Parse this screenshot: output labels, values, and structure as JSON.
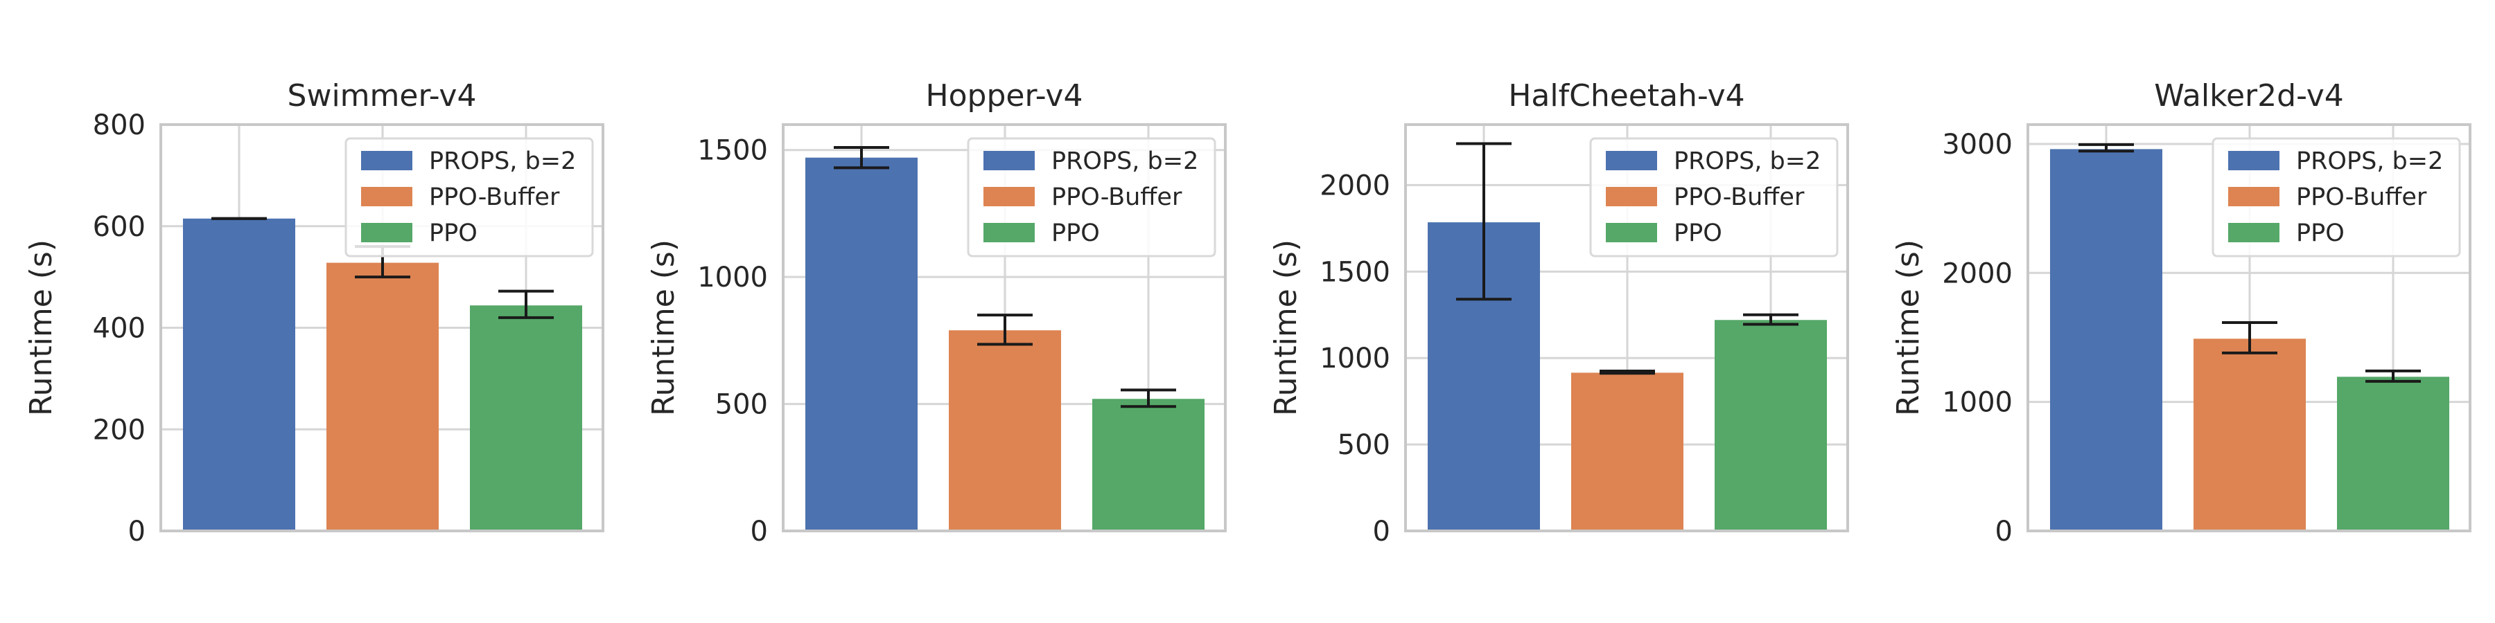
{
  "figure": {
    "ylabel": "Runtime (s)"
  },
  "legend": {
    "labels": [
      "PROPS, b=2",
      "PPO-Buffer",
      "PPO"
    ],
    "colors": [
      "#4c72b0",
      "#dd8452",
      "#55a868"
    ]
  },
  "chart_data": [
    {
      "type": "bar",
      "title": "Swimmer-v4",
      "categories": [
        "PROPS, b=2",
        "PPO-Buffer",
        "PPO"
      ],
      "values": [
        615,
        528,
        444
      ],
      "errors": [
        [
          615,
          615
        ],
        [
          500,
          560
        ],
        [
          420,
          472
        ]
      ],
      "ylim": [
        0,
        800
      ],
      "yticks": [
        0,
        200,
        400,
        600,
        800
      ],
      "xlabel": "",
      "ylabel": "Runtime (s)",
      "grid": true,
      "legend_position": "top-right"
    },
    {
      "type": "bar",
      "title": "Hopper-v4",
      "categories": [
        "PROPS, b=2",
        "PPO-Buffer",
        "PPO"
      ],
      "values": [
        1470,
        790,
        520
      ],
      "errors": [
        [
          1430,
          1510
        ],
        [
          735,
          850
        ],
        [
          490,
          555
        ]
      ],
      "ylim": [
        0,
        1600
      ],
      "yticks": [
        0,
        500,
        1000,
        1500
      ],
      "xlabel": "",
      "ylabel": "Runtime (s)",
      "grid": true,
      "legend_position": "top-right"
    },
    {
      "type": "bar",
      "title": "HalfCheetah-v4",
      "categories": [
        "PROPS, b=2",
        "PPO-Buffer",
        "PPO"
      ],
      "values": [
        1785,
        915,
        1220
      ],
      "errors": [
        [
          1340,
          2240
        ],
        [
          912,
          925
        ],
        [
          1195,
          1250
        ]
      ],
      "ylim": [
        0,
        2350
      ],
      "yticks": [
        0,
        500,
        1000,
        1500,
        2000
      ],
      "xlabel": "",
      "ylabel": "Runtime (s)",
      "grid": true,
      "legend_position": "top-right"
    },
    {
      "type": "bar",
      "title": "Walker2d-v4",
      "categories": [
        "PROPS, b=2",
        "PPO-Buffer",
        "PPO"
      ],
      "values": [
        2960,
        1490,
        1195
      ],
      "errors": [
        [
          2945,
          2995
        ],
        [
          1380,
          1615
        ],
        [
          1160,
          1240
        ]
      ],
      "ylim": [
        0,
        3150
      ],
      "yticks": [
        0,
        1000,
        2000,
        3000
      ],
      "xlabel": "",
      "ylabel": "Runtime (s)",
      "grid": true,
      "legend_position": "top-right"
    }
  ]
}
